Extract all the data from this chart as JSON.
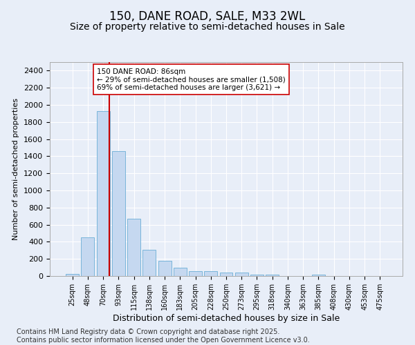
{
  "title": "150, DANE ROAD, SALE, M33 2WL",
  "subtitle": "Size of property relative to semi-detached houses in Sale",
  "xlabel": "Distribution of semi-detached houses by size in Sale",
  "ylabel": "Number of semi-detached properties",
  "categories": [
    "25sqm",
    "48sqm",
    "70sqm",
    "93sqm",
    "115sqm",
    "138sqm",
    "160sqm",
    "183sqm",
    "205sqm",
    "228sqm",
    "250sqm",
    "273sqm",
    "295sqm",
    "318sqm",
    "340sqm",
    "363sqm",
    "385sqm",
    "408sqm",
    "430sqm",
    "453sqm",
    "475sqm"
  ],
  "values": [
    22,
    450,
    1930,
    1460,
    670,
    305,
    175,
    95,
    60,
    60,
    38,
    38,
    20,
    20,
    0,
    0,
    20,
    0,
    0,
    0,
    0
  ],
  "bar_color": "#c5d8f0",
  "bar_edge_color": "#6aaed6",
  "vline_color": "#cc0000",
  "annotation_text": "150 DANE ROAD: 86sqm\n← 29% of semi-detached houses are smaller (1,508)\n69% of semi-detached houses are larger (3,621) →",
  "annotation_box_color": "#ffffff",
  "annotation_box_edge_color": "#cc0000",
  "ylim": [
    0,
    2500
  ],
  "yticks": [
    0,
    200,
    400,
    600,
    800,
    1000,
    1200,
    1400,
    1600,
    1800,
    2000,
    2200,
    2400
  ],
  "footer": "Contains HM Land Registry data © Crown copyright and database right 2025.\nContains public sector information licensed under the Open Government Licence v3.0.",
  "bg_color": "#e8eef8",
  "plot_bg_color": "#e8eef8",
  "grid_color": "#ffffff",
  "title_fontsize": 12,
  "subtitle_fontsize": 10,
  "footer_fontsize": 7,
  "vline_x_index": 2,
  "vline_x_offset": 0.42
}
